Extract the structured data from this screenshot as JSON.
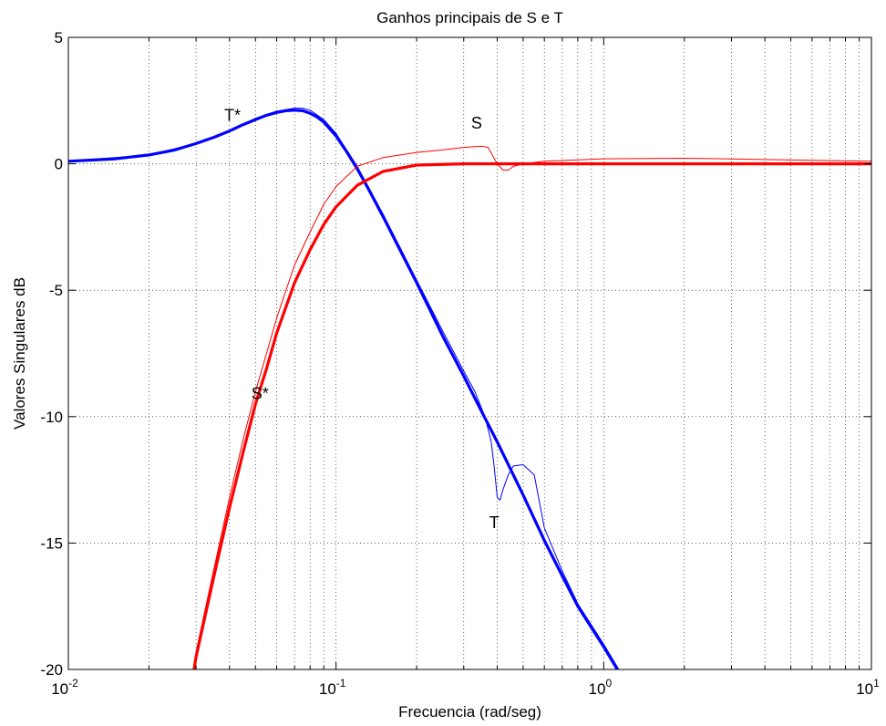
{
  "chart_data": {
    "type": "line",
    "title": "Ganhos principais de S e T",
    "xlabel": "Frecuencia (rad/seg)",
    "ylabel": "Valores Singulares dB",
    "x_scale": "log",
    "xlim": [
      0.01,
      10
    ],
    "ylim": [
      -20,
      5
    ],
    "grid": true,
    "x_ticks": [
      {
        "value": 0.01,
        "base": "10",
        "exp": "-2"
      },
      {
        "value": 0.1,
        "base": "10",
        "exp": "-1"
      },
      {
        "value": 1,
        "base": "10",
        "exp": "0"
      },
      {
        "value": 10,
        "base": "10",
        "exp": "1"
      }
    ],
    "y_ticks": [
      {
        "value": 5,
        "label": "5"
      },
      {
        "value": 0,
        "label": "0"
      },
      {
        "value": -5,
        "label": "-5"
      },
      {
        "value": -10,
        "label": "-10"
      },
      {
        "value": -15,
        "label": "-15"
      },
      {
        "value": -20,
        "label": "-20"
      }
    ],
    "series": [
      {
        "color": "#0000ff",
        "style": "thick-marker",
        "x": [
          0.01,
          0.015,
          0.02,
          0.025,
          0.03,
          0.035,
          0.04,
          0.045,
          0.05,
          0.055,
          0.06,
          0.065,
          0.07,
          0.075,
          0.08,
          0.085,
          0.09,
          0.1,
          0.11,
          0.12,
          0.13,
          0.15,
          0.2,
          0.25,
          0.3,
          0.35,
          0.4,
          0.5,
          0.6,
          0.7,
          0.8,
          1.0,
          1.2,
          1.35
        ],
        "y": [
          0.1,
          0.2,
          0.35,
          0.55,
          0.8,
          1.05,
          1.3,
          1.55,
          1.75,
          1.92,
          2.03,
          2.1,
          2.12,
          2.1,
          2.0,
          1.85,
          1.65,
          1.1,
          0.45,
          -0.2,
          -0.85,
          -2.1,
          -4.7,
          -6.8,
          -8.4,
          -9.8,
          -11.0,
          -13.1,
          -14.9,
          -16.3,
          -17.5,
          -19.1,
          -20.5,
          -21.1
        ]
      },
      {
        "color": "#0000ff",
        "style": "thin",
        "x": [
          0.01,
          0.02,
          0.03,
          0.04,
          0.05,
          0.06,
          0.07,
          0.075,
          0.08,
          0.09,
          0.1,
          0.12,
          0.15,
          0.2,
          0.25,
          0.3,
          0.33,
          0.36,
          0.38,
          0.39,
          0.4,
          0.41,
          0.42,
          0.44,
          0.46,
          0.5,
          0.55,
          0.6,
          0.7,
          0.8,
          1.0,
          1.2,
          1.35
        ],
        "y": [
          0.1,
          0.35,
          0.8,
          1.3,
          1.8,
          2.08,
          2.2,
          2.2,
          2.12,
          1.75,
          1.2,
          -0.1,
          -2.0,
          -4.6,
          -6.6,
          -8.2,
          -9.0,
          -10.0,
          -11.0,
          -12.0,
          -13.2,
          -13.3,
          -12.9,
          -12.3,
          -11.95,
          -11.9,
          -12.3,
          -14.4,
          -16.1,
          -17.4,
          -19.0,
          -20.4,
          -21.1
        ]
      },
      {
        "color": "#ff0000",
        "style": "thick-marker",
        "x": [
          0.028,
          0.03,
          0.035,
          0.04,
          0.045,
          0.05,
          0.055,
          0.06,
          0.07,
          0.08,
          0.09,
          0.1,
          0.12,
          0.15,
          0.2,
          0.3,
          0.5,
          1.0,
          2.0,
          5.0,
          10.0
        ],
        "y": [
          -21.5,
          -19.5,
          -16.3,
          -13.6,
          -11.4,
          -9.5,
          -8.1,
          -6.7,
          -4.7,
          -3.4,
          -2.4,
          -1.7,
          -0.85,
          -0.3,
          -0.05,
          0.0,
          0.0,
          0.0,
          0.0,
          0.0,
          0.0
        ]
      },
      {
        "color": "#ff0000",
        "style": "thin",
        "x": [
          0.028,
          0.03,
          0.035,
          0.04,
          0.045,
          0.05,
          0.055,
          0.06,
          0.07,
          0.08,
          0.09,
          0.1,
          0.12,
          0.15,
          0.2,
          0.25,
          0.3,
          0.35,
          0.37,
          0.4,
          0.42,
          0.44,
          0.46,
          0.5,
          0.6,
          1.0,
          2.0,
          5.0,
          10.0
        ],
        "y": [
          -21.5,
          -19.3,
          -16.0,
          -13.2,
          -10.9,
          -9.0,
          -7.5,
          -6.1,
          -4.0,
          -2.7,
          -1.6,
          -0.9,
          -0.1,
          0.25,
          0.45,
          0.55,
          0.65,
          0.7,
          0.65,
          0.0,
          -0.25,
          -0.25,
          -0.1,
          0.0,
          0.1,
          0.2,
          0.22,
          0.15,
          0.1
        ]
      }
    ],
    "annotations": [
      {
        "text": "T*",
        "x": 0.041,
        "y": 1.7
      },
      {
        "text": "S",
        "x": 0.335,
        "y": 1.4
      },
      {
        "text": "S*",
        "x": 0.052,
        "y": -9.3
      },
      {
        "text": "T",
        "x": 0.39,
        "y": -14.4
      }
    ]
  }
}
